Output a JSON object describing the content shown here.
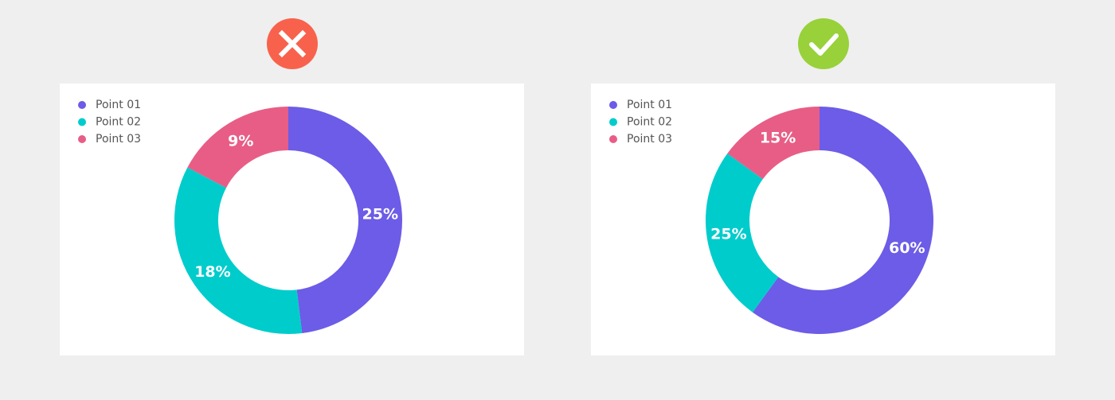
{
  "chart_data": [
    {
      "type": "donut",
      "categories": [
        "Point 01",
        "Point 02",
        "Point 03"
      ],
      "colors": [
        "#6c5ce7",
        "#00cccc",
        "#e85d86"
      ],
      "values": [
        25,
        18,
        9
      ],
      "value_labels": [
        "25%",
        "18%",
        "9%"
      ]
    },
    {
      "type": "donut",
      "categories": [
        "Point 01",
        "Point 02",
        "Point 03"
      ],
      "colors": [
        "#6c5ce7",
        "#00cccc",
        "#e85d86"
      ],
      "values": [
        60,
        25,
        15
      ],
      "value_labels": [
        "60%",
        "25%",
        "15%"
      ]
    }
  ]
}
